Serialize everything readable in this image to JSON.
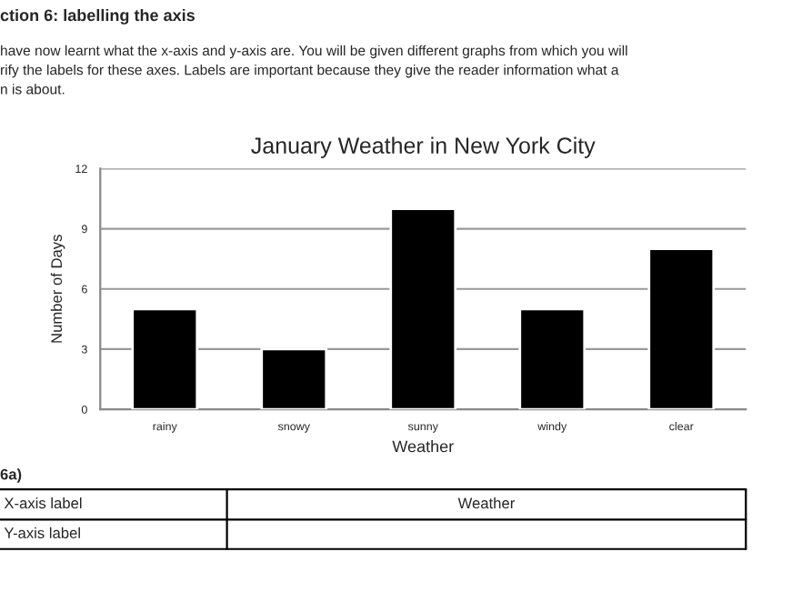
{
  "chart_data": {
    "type": "bar",
    "title": "January Weather in New York City",
    "xlabel": "Weather",
    "ylabel": "Number of Days",
    "categories": [
      "rainy",
      "snowy",
      "sunny",
      "windy",
      "clear"
    ],
    "values": [
      5,
      3,
      10,
      5,
      8
    ],
    "color": "#000000",
    "ylim": [
      0,
      12
    ],
    "yticks": [
      0,
      3,
      6,
      9,
      12
    ],
    "grid": "y",
    "annotations": [
      "ction 6: labelling the axis",
      "have now learnt what the x-axis and y-axis are. You will be given different graphs from which you will\nrify the labels for these axes. Labels are important because they give the reader information what a\nn is about.",
      "6a)",
      "X-axis label",
      "Weather",
      "Y-axis label"
    ]
  }
}
